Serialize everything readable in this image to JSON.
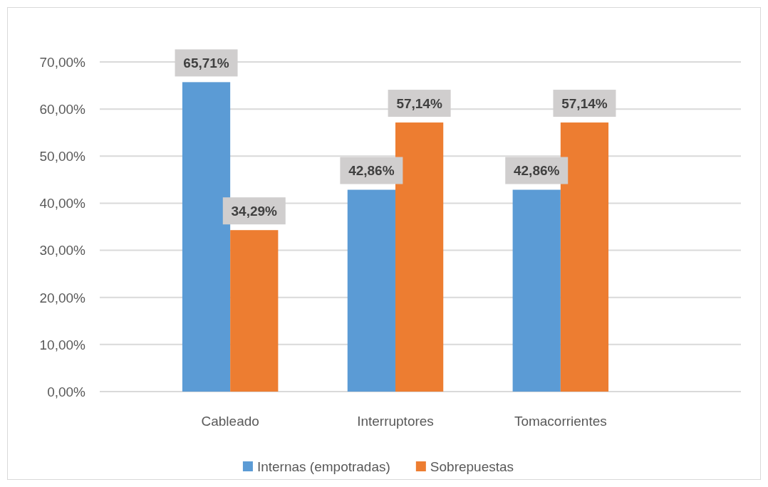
{
  "chart_data": {
    "type": "bar",
    "categories": [
      "Cableado",
      "Interruptores",
      "Tomacorrientes"
    ],
    "series": [
      {
        "name": "Internas (empotradas)",
        "color": "#5b9bd5",
        "values": [
          65.71,
          42.86,
          42.86
        ],
        "value_labels": [
          "65,71%",
          "42,86%",
          "42,86%"
        ]
      },
      {
        "name": "Sobrepuestas",
        "color": "#ed7d31",
        "values": [
          34.29,
          57.14,
          57.14
        ],
        "value_labels": [
          "34,29%",
          "57,14%",
          "57,14%"
        ]
      }
    ],
    "ylim": [
      0,
      70
    ],
    "yticks": [
      {
        "value": 0,
        "label": "0,00%"
      },
      {
        "value": 10,
        "label": "10,00%"
      },
      {
        "value": 20,
        "label": "20,00%"
      },
      {
        "value": 30,
        "label": "30,00%"
      },
      {
        "value": 40,
        "label": "40,00%"
      },
      {
        "value": 50,
        "label": "50,00%"
      },
      {
        "value": 60,
        "label": "60,00%"
      },
      {
        "value": 70,
        "label": "70,00%"
      }
    ],
    "grid": "y",
    "legend": "bottom"
  }
}
